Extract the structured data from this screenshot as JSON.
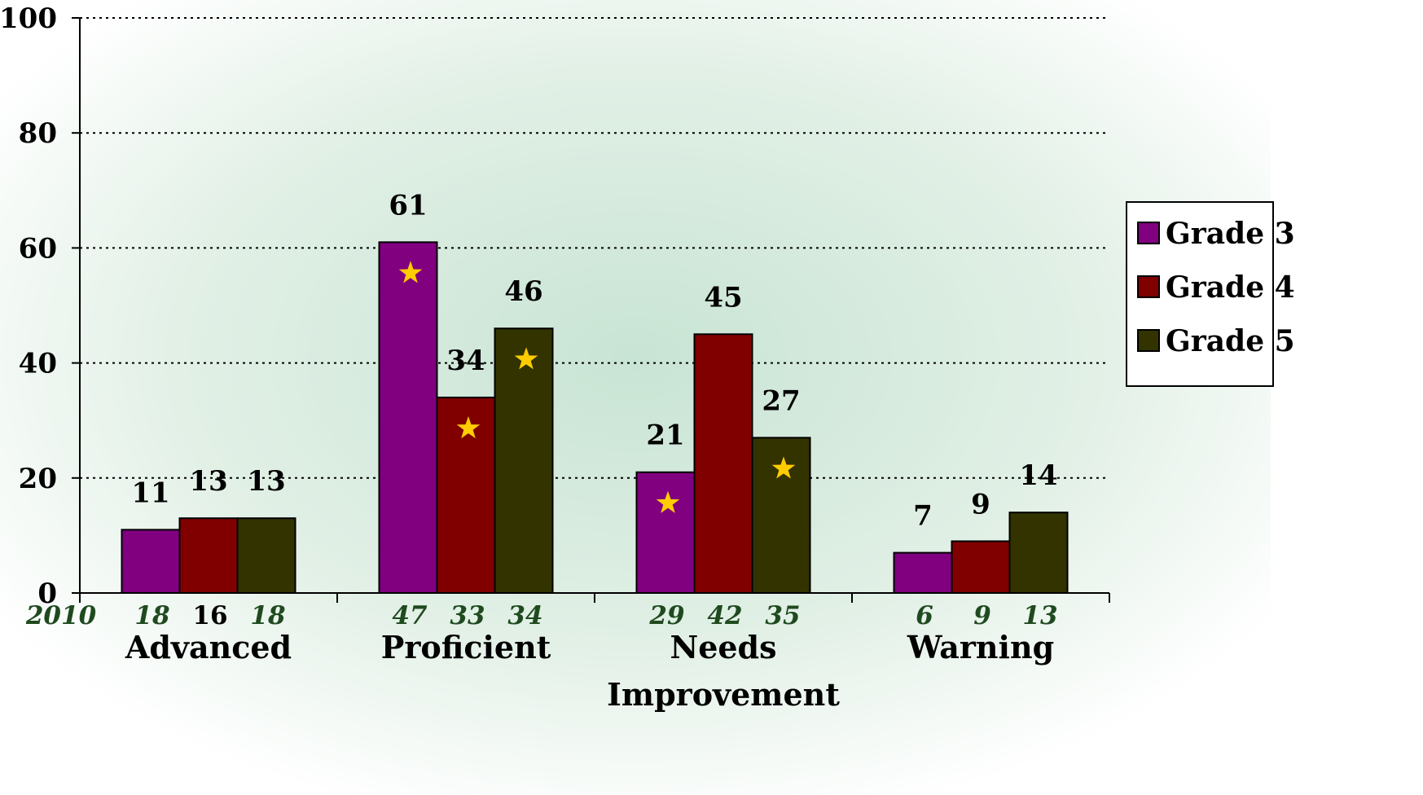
{
  "chart_data": {
    "type": "bar",
    "categories": [
      "Advanced",
      "Proficient",
      "Needs",
      "Warning"
    ],
    "category_subline": [
      "",
      "",
      "Improvement",
      ""
    ],
    "series": [
      {
        "name": "Grade 3",
        "values": [
          11,
          61,
          21,
          7
        ]
      },
      {
        "name": "Grade 4",
        "values": [
          13,
          34,
          45,
          9
        ]
      },
      {
        "name": "Grade 5",
        "values": [
          13,
          46,
          27,
          14
        ]
      }
    ],
    "colors": [
      "#800080",
      "#800000",
      "#333300"
    ],
    "ylim": [
      0,
      100
    ],
    "yticks": [
      0,
      20,
      40,
      60,
      80,
      100
    ],
    "grid": "dotted horizontal",
    "legend_position": "right",
    "prior_year_label": "2010",
    "prior_year_values": [
      [
        "18",
        "16",
        "18"
      ],
      [
        "47",
        "33",
        "34"
      ],
      [
        "29",
        "42",
        "35"
      ],
      [
        "6",
        "9",
        "13"
      ]
    ],
    "star_markers": [
      {
        "category": 1,
        "series": 0
      },
      {
        "category": 1,
        "series": 1
      },
      {
        "category": 1,
        "series": 2
      },
      {
        "category": 2,
        "series": 0
      },
      {
        "category": 2,
        "series": 2
      }
    ],
    "star_color": "#ffcc00"
  }
}
